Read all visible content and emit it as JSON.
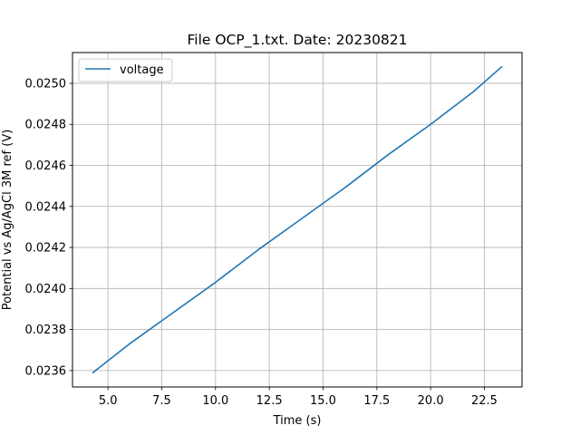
{
  "chart_data": {
    "type": "line",
    "title": "File OCP_1.txt. Date: 20230821",
    "xlabel": "Time (s)",
    "ylabel": "Potential vs Ag/AgCl 3M ref (V)",
    "xlim": [
      3.35,
      24.25
    ],
    "ylim": [
      0.02352,
      0.02515
    ],
    "x_ticks": [
      5.0,
      7.5,
      10.0,
      12.5,
      15.0,
      17.5,
      20.0,
      22.5
    ],
    "x_tick_labels": [
      "5.0",
      "7.5",
      "10.0",
      "12.5",
      "15.0",
      "17.5",
      "20.0",
      "22.5"
    ],
    "y_ticks": [
      0.0236,
      0.0238,
      0.024,
      0.0242,
      0.0244,
      0.0246,
      0.0248,
      0.025
    ],
    "y_tick_labels": [
      "0.0236",
      "0.0238",
      "0.0240",
      "0.0242",
      "0.0244",
      "0.0246",
      "0.0248",
      "0.0250"
    ],
    "grid": true,
    "legend_position": "top-left",
    "series": [
      {
        "name": "voltage",
        "color": "#1f77b4",
        "x": [
          4.3,
          6.0,
          8.0,
          10.0,
          12.0,
          14.0,
          16.0,
          18.0,
          20.0,
          22.0,
          23.3
        ],
        "y": [
          0.02359,
          0.02373,
          0.02388,
          0.02403,
          0.02419,
          0.02434,
          0.02449,
          0.02465,
          0.0248,
          0.02496,
          0.02508
        ]
      }
    ]
  }
}
